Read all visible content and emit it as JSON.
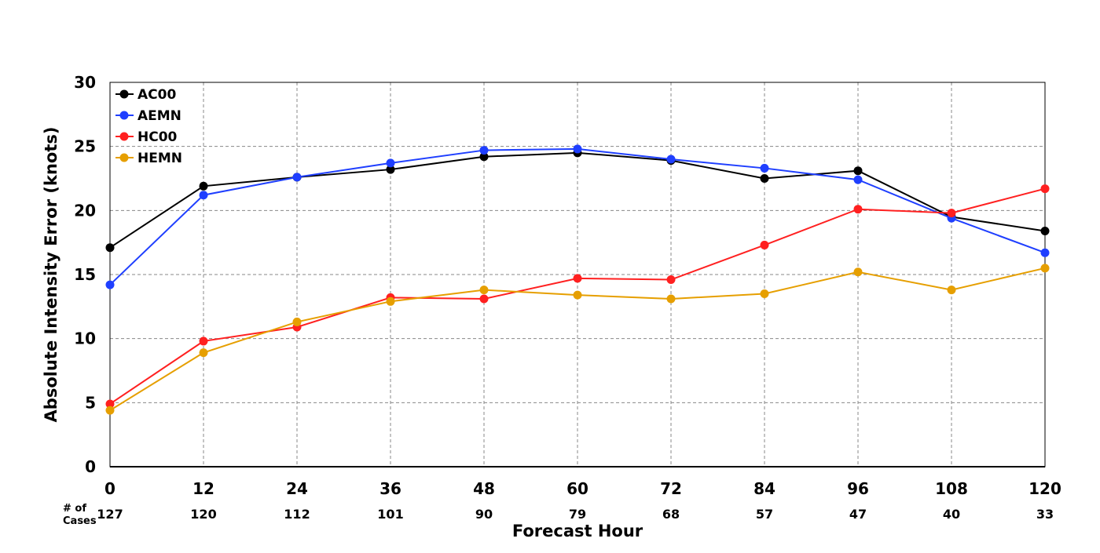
{
  "chart_data": {
    "type": "line",
    "title": "",
    "xlabel": "Forecast Hour",
    "ylabel": "Absolute Intensity Error (knots)",
    "x": [
      0,
      12,
      24,
      36,
      48,
      60,
      72,
      84,
      96,
      108,
      120
    ],
    "xlim": [
      0,
      120
    ],
    "ylim": [
      0,
      30
    ],
    "yticks": [
      0,
      5,
      10,
      15,
      20,
      25,
      30
    ],
    "grid": true,
    "legend_position": "top-left",
    "cases_label": "# of Cases",
    "cases": [
      127,
      120,
      112,
      101,
      90,
      79,
      68,
      57,
      47,
      40,
      33
    ],
    "series": [
      {
        "name": "AC00",
        "color": "#000000",
        "values": [
          17.1,
          21.9,
          22.6,
          23.2,
          24.2,
          24.5,
          23.9,
          22.5,
          23.1,
          19.5,
          18.4
        ]
      },
      {
        "name": "AEMN",
        "color": "#1f3fff",
        "values": [
          14.2,
          21.2,
          22.6,
          23.7,
          24.7,
          24.8,
          24.0,
          23.3,
          22.4,
          19.4,
          16.7
        ]
      },
      {
        "name": "HC00",
        "color": "#ff2020",
        "values": [
          4.9,
          9.8,
          10.9,
          13.2,
          13.1,
          14.7,
          14.6,
          17.3,
          20.1,
          19.8,
          21.7
        ]
      },
      {
        "name": "HEMN",
        "color": "#e69f00",
        "values": [
          4.4,
          8.9,
          11.3,
          12.9,
          13.8,
          13.4,
          13.1,
          13.5,
          15.2,
          13.8,
          15.5
        ]
      }
    ]
  }
}
